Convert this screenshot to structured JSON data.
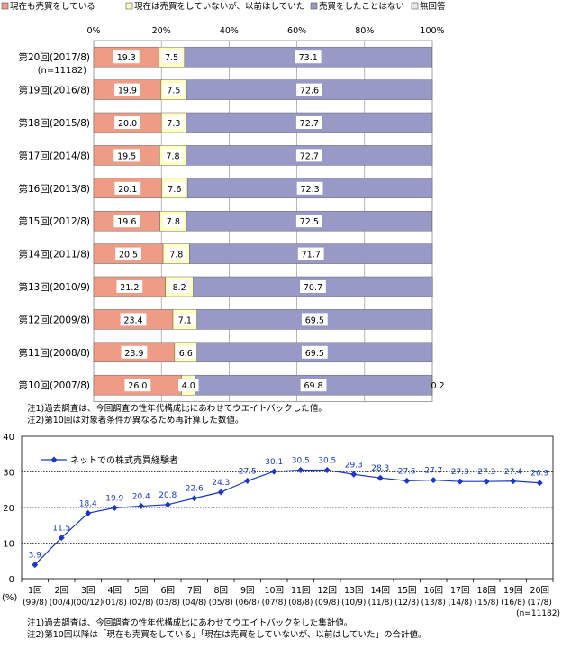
{
  "chart_data": [
    {
      "type": "bar",
      "stacked": true,
      "orientation": "horizontal",
      "legend_position": "top",
      "series": [
        {
          "name": "現在も売買をしている",
          "color": "#ee9c85"
        },
        {
          "name": "現在は売買をしていないが、以前はしていた",
          "color": "#ffffc0"
        },
        {
          "name": "売買をしたことはない",
          "color": "#9999c8"
        },
        {
          "name": "無回答",
          "color": "#e8e8e8"
        }
      ],
      "categories": [
        "第20回(2017/8)",
        "第19回(2016/8)",
        "第18回(2015/8)",
        "第17回(2014/8)",
        "第16回(2013/8)",
        "第15回(2012/8)",
        "第14回(2011/8)",
        "第13回(2010/9)",
        "第12回(2009/8)",
        "第11回(2008/8)",
        "第10回(2007/8)"
      ],
      "category_note": "(n=11182)",
      "values": [
        [
          19.3,
          7.5,
          73.1,
          0
        ],
        [
          19.9,
          7.5,
          72.6,
          0
        ],
        [
          20.0,
          7.3,
          72.7,
          0
        ],
        [
          19.5,
          7.8,
          72.7,
          0
        ],
        [
          20.1,
          7.6,
          72.3,
          0
        ],
        [
          19.6,
          7.8,
          72.5,
          0
        ],
        [
          20.5,
          7.8,
          71.7,
          0
        ],
        [
          21.2,
          8.2,
          70.7,
          0
        ],
        [
          23.4,
          7.1,
          69.5,
          0
        ],
        [
          23.9,
          6.6,
          69.5,
          0
        ],
        [
          26.0,
          4.0,
          69.8,
          0.2
        ]
      ],
      "labels": [
        [
          "19.3",
          "7.5",
          "73.1",
          ""
        ],
        [
          "19.9",
          "7.5",
          "72.6",
          ""
        ],
        [
          "20.0",
          "7.3",
          "72.7",
          ""
        ],
        [
          "19.5",
          "7.8",
          "72.7",
          ""
        ],
        [
          "20.1",
          "7.6",
          "72.3",
          ""
        ],
        [
          "19.6",
          "7.8",
          "72.5",
          ""
        ],
        [
          "20.5",
          "7.8",
          "71.7",
          ""
        ],
        [
          "21.2",
          "8.2",
          "70.7",
          ""
        ],
        [
          "23.4",
          "7.1",
          "69.5",
          ""
        ],
        [
          "23.9",
          "6.6",
          "69.5",
          ""
        ],
        [
          "26.0",
          "4.0",
          "69.8",
          "0.2"
        ]
      ],
      "xlim": [
        0,
        100
      ],
      "xticks": [
        "0%",
        "20%",
        "40%",
        "60%",
        "80%",
        "100%"
      ],
      "notes": [
        "注1)過去調査は、今回調査の性年代構成比にあわせてウエイトバックした値。",
        "注2)第10回は対象者条件が異なるため再計算した数値。"
      ]
    },
    {
      "type": "line",
      "series": [
        {
          "name": "ネットでの株式売買経験者",
          "color": "#1a37c8",
          "values": [
            3.9,
            11.5,
            18.4,
            19.9,
            20.4,
            20.8,
            22.6,
            24.3,
            27.5,
            30.1,
            30.5,
            30.5,
            29.3,
            28.3,
            27.5,
            27.7,
            27.3,
            27.3,
            27.4,
            26.9
          ]
        }
      ],
      "categories": [
        "1回",
        "2回",
        "3回",
        "4回",
        "5回",
        "6回",
        "7回",
        "8回",
        "9回",
        "10回",
        "11回",
        "12回",
        "13回",
        "14回",
        "15回",
        "16回",
        "17回",
        "18回",
        "19回",
        "20回"
      ],
      "subcategories": [
        "(99/8)",
        "(00/4)",
        "(00/12)",
        "(01/8)",
        "(02/8)",
        "(03/8)",
        "(04/8)",
        "(05/8)",
        "(06/8)",
        "(07/8)",
        "(08/8)",
        "(09/8)",
        "(10/9)",
        "(11/8)",
        "(12/8)",
        "(13/8)",
        "(14/8)",
        "(15/8)",
        "(16/8)",
        "(17/8)"
      ],
      "point_labels": [
        "3.9",
        "11.5",
        "18.4",
        "19.9",
        "20.4",
        "20.8",
        "22.6",
        "24.3",
        "27.5",
        "30.1",
        "30.5",
        "30.5",
        "29.3",
        "28.3",
        "27.5",
        "27.7",
        "27.3",
        "27.3",
        "27.4",
        "26.9"
      ],
      "ylim": [
        0,
        40
      ],
      "yticks": [
        "0",
        "10",
        "20",
        "30",
        "40"
      ],
      "ylabel": "(%)",
      "grid": true,
      "legend_position": "top-left",
      "n_label": "(n=11182)",
      "notes": [
        "注1)過去調査は、今回調査の性年代構成比にあわせてウエイトバックをした集計値。",
        "注2)第10回以降は「現在も売買をしている」「現在は売買をしていないが、以前はしていた」の合計値。"
      ]
    }
  ]
}
